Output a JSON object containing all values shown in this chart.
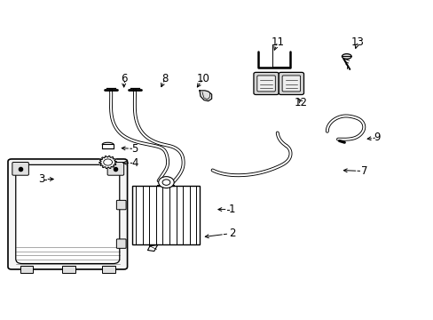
{
  "background_color": "#ffffff",
  "line_color": "#000000",
  "label_color": "#000000",
  "figsize": [
    4.89,
    3.6
  ],
  "dpi": 100,
  "labels": [
    [
      1,
      0.535,
      0.345,
      0.495,
      0.345
    ],
    [
      2,
      0.535,
      0.27,
      0.465,
      0.258
    ],
    [
      3,
      0.095,
      0.44,
      0.13,
      0.44
    ],
    [
      4,
      0.31,
      0.49,
      0.275,
      0.492
    ],
    [
      5,
      0.31,
      0.535,
      0.272,
      0.538
    ],
    [
      6,
      0.285,
      0.755,
      0.285,
      0.718
    ],
    [
      7,
      0.84,
      0.465,
      0.785,
      0.468
    ],
    [
      8,
      0.38,
      0.755,
      0.368,
      0.72
    ],
    [
      9,
      0.87,
      0.57,
      0.84,
      0.565
    ],
    [
      10,
      0.468,
      0.755,
      0.45,
      0.72
    ],
    [
      11,
      0.64,
      0.87,
      0.63,
      0.835
    ],
    [
      12,
      0.695,
      0.68,
      0.685,
      0.7
    ],
    [
      13,
      0.825,
      0.87,
      0.818,
      0.84
    ]
  ]
}
